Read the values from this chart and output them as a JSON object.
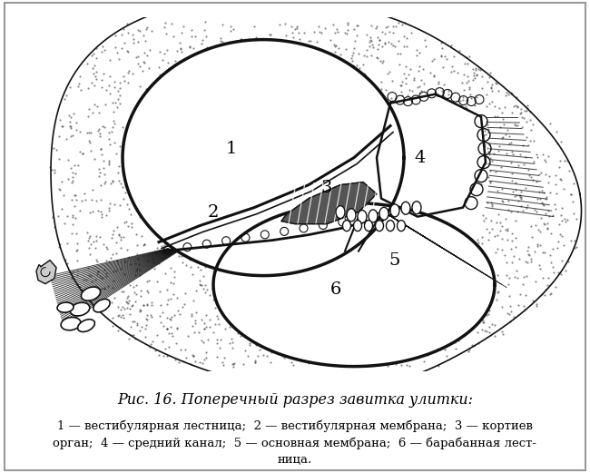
{
  "title": "Рис. 16. Поперечный разрез завитка улитки:",
  "caption_line1": "1 — вестибулярная лестница;  2 — вестибулярная мембрана;  3 — кортиев",
  "caption_line2": "орган;  4 — средний канал;  5 — основная мембрана;  6 — барабанная лест-",
  "caption_line3": "ница.",
  "bg_color": "#ffffff",
  "drawing_color": "#111111",
  "fig_width": 6.5,
  "fig_height": 5.21,
  "dpi": 100
}
